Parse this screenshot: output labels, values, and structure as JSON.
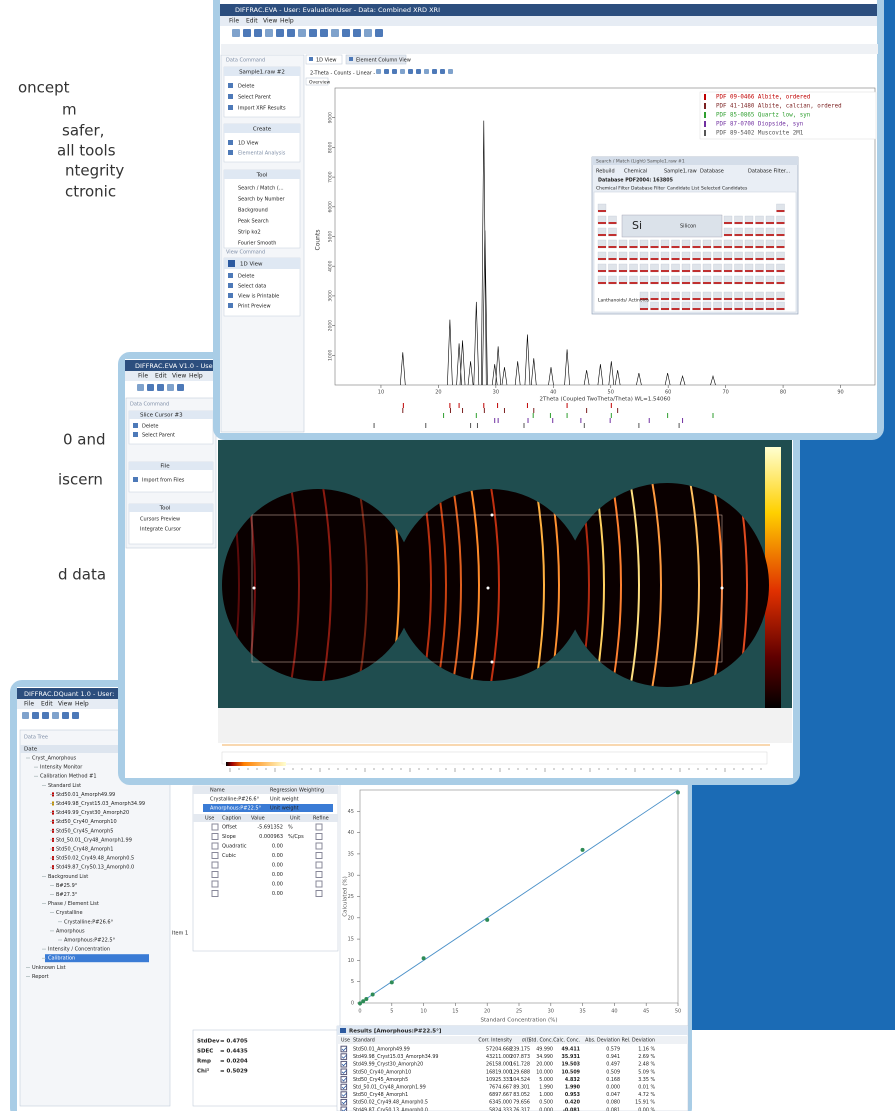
{
  "side_text": [
    "oncept",
    "m",
    "safer,",
    "all tools",
    "ntegrity",
    "ctronic",
    "0 and",
    "iscern",
    "d data"
  ],
  "eva_window": {
    "title": "DIFFRAC.EVA - User: EvaluationUser - Data: Combined XRD XRI",
    "menu": [
      "File",
      "Edit",
      "View",
      "Help"
    ],
    "data_panel": "Data Command",
    "sample": "Sample1.raw #2",
    "sample_actions": [
      "Delete",
      "Select Parent",
      "Import XRF Results"
    ],
    "create_header": "Create",
    "create_actions": [
      "1D View",
      "Elemental Analysis"
    ],
    "tool_header": "Tool",
    "tool_actions": [
      "Search / Match (...",
      "Search by Number",
      "Background",
      "Peak Search",
      "Strip kα2",
      "Fourier Smooth"
    ],
    "view_panel": "View Command",
    "view_name": "1D View",
    "view_actions": [
      "Delete",
      "Select data",
      "View is Printable",
      "Print Preview"
    ],
    "tabs": [
      "1D View",
      "Element Column View"
    ],
    "chart_toolbar": "2-Theta - Counts - Linear -",
    "overview": "Overview",
    "dialog": {
      "title": "Search / Match (Light) Sample1.raw #1",
      "controls": [
        "Rebuild",
        "Chemical",
        "Sample1.raw",
        "Database",
        "Database Filter..."
      ],
      "database": "Database PDF2004: 163805",
      "tabs": [
        "Chemical Filter",
        "Database Filter",
        "Candidate List",
        "Selected Candidates"
      ],
      "symbol": "Si",
      "element": "Silicon",
      "group": "Lanthanoids/ Actinoids"
    }
  },
  "analysis_window": {
    "title": "DIFFRAC.EVA V1.0 - User:",
    "menu": [
      "File",
      "Edit",
      "View",
      "Help"
    ],
    "data_panel": "Data Command",
    "cursor": "Slice Cursor #3",
    "cursor_actions": [
      "Delete",
      "Select Parent"
    ],
    "file_header": "File",
    "file_actions": [
      "Import from Files"
    ],
    "tool_header": "Tool",
    "tool_actions": [
      "Cursors Preview",
      "Integrate Cursor"
    ]
  },
  "dquant_window": {
    "title": "DIFFRAC.DQuant 1.0 - User:",
    "menu": [
      "File",
      "Edit",
      "View",
      "Help"
    ],
    "panel": "Data Tree",
    "column": "Date",
    "tree": [
      "Cryst_Amorphous",
      "Intensity Monitor",
      "Calibration Method #1",
      "Standard List",
      "Std50.01_Amorph49.99",
      "Std49.98_Cryst15.03_Amorph34.99",
      "Std49.99_Cryst30_Amorph20",
      "Std50_Cry40_Amorph10",
      "Std50_Cry45_Amorph5",
      "Std_50.01_Cry48_Amorph1.99",
      "Std50_Cry48_Amorph1",
      "Std50.02_Cry49.48_Amorph0.5",
      "Std49.87_Cry50.13_Amorph0.0",
      "Background List",
      "B#25.9°",
      "B#27.3°",
      "Phase / Element List",
      "Crystalline",
      "Crystalline:P#26.6°",
      "Amorphous",
      "Amorphous:P#22.5°",
      "Intensity / Concentration",
      "Calibration",
      "Unknown List",
      "Report"
    ],
    "regression_header": [
      "Name",
      "Regression Weighting"
    ],
    "phases": [
      [
        "Crystalline:P#26.6°",
        "Unit weight"
      ],
      [
        "Amorphous:P#22.5°",
        "Unit weight"
      ]
    ],
    "coef_header": [
      "Use",
      "Caption",
      "Value",
      "Unit",
      "Refine"
    ],
    "coefs": [
      {
        "caption": "Offset",
        "value": "-5.691352",
        "unit": "%"
      },
      {
        "caption": "Slope",
        "value": "0.000963",
        "unit": "%/Cps"
      },
      {
        "caption": "Quadratic",
        "value": "0.00"
      },
      {
        "caption": "Cubic",
        "value": "0.00"
      },
      {
        "value": "0.00"
      },
      {
        "value": "0.00"
      },
      {
        "value": "0.00"
      },
      {
        "value": "0.00"
      }
    ],
    "item": "Item 1",
    "stats": [
      [
        "StdDev",
        "= 0.4705"
      ],
      [
        "SDEC",
        "= 0.4435"
      ],
      [
        "Rmp",
        "= 0.0204"
      ],
      [
        "Chi²",
        "= 0.5029"
      ]
    ],
    "results_title": "Results [Amorphous:P#22.5°]",
    "results_header": [
      "Use",
      "Standard",
      "Corr. Intensity",
      "σ(I)",
      "Std. Conc.",
      "Calc. Conc.",
      "Abs. Deviation",
      "Rel. Deviation"
    ],
    "results": [
      [
        "Std50.01_Amorph49.99",
        "57204.668",
        "239.175",
        "49.990",
        "49.411",
        "0.579",
        "1.16 %"
      ],
      [
        "Std49.98_Cryst15.03_Amorph34.99",
        "43211.000",
        "207.873",
        "34.990",
        "35.931",
        "0.941",
        "2.69 %"
      ],
      [
        "Std49.99_Cryst30_Amorph20",
        "26158.000",
        "161.728",
        "20.000",
        "19.503",
        "0.497",
        "2.48 %"
      ],
      [
        "Std50_Cry40_Amorph10",
        "16819.000",
        "129.688",
        "10.000",
        "10.509",
        "0.509",
        "5.09 %"
      ],
      [
        "Std50_Cry45_Amorph5",
        "10925.333",
        "104.524",
        "5.000",
        "4.832",
        "0.168",
        "3.35 %"
      ],
      [
        "Std_50.01_Cry48_Amorph1.99",
        "7674.667",
        "89.301",
        "1.990",
        "1.990",
        "0.000",
        "0.01 %"
      ],
      [
        "Std50_Cry48_Amorph1",
        "6897.667",
        "83.052",
        "1.000",
        "0.953",
        "0.047",
        "4.72 %"
      ],
      [
        "Std50.02_Cry49.48_Amorph0.5",
        "6345.000",
        "79.656",
        "0.500",
        "0.420",
        "0.080",
        "15.91 %"
      ],
      [
        "Std49.87_Cry50.13_Amorph0.0",
        "5824.333",
        "76.317",
        "0.000",
        "-0.081",
        "0.081",
        "0.00 %"
      ]
    ]
  },
  "chart_data": [
    {
      "type": "stick",
      "x_label": "2Theta (Coupled TwoTheta/Theta) WL=1.54060",
      "y_label": "Counts",
      "color": "#000000",
      "xlim": [
        2,
        96
      ],
      "xticks": [
        10,
        20,
        30,
        40,
        50,
        60,
        70,
        80,
        90
      ],
      "ylim": [
        0,
        10000
      ],
      "yticks": [
        1000,
        2000,
        3000,
        4000,
        5000,
        6000,
        7000,
        8000,
        9000
      ],
      "x": [
        13.8,
        22.0,
        23.6,
        24.2,
        25.6,
        26.6,
        27.9,
        28.1,
        29.8,
        30.4,
        31.5,
        33.8,
        35.5,
        36.6,
        39.6,
        42.4,
        45.8,
        48.2,
        50.1,
        51.2,
        54.9,
        59.9,
        62.5,
        67.8
      ],
      "values": [
        1100,
        2200,
        1400,
        1500,
        800,
        2800,
        8900,
        5200,
        700,
        1300,
        600,
        800,
        1700,
        900,
        600,
        1200,
        500,
        700,
        800,
        500,
        400,
        400,
        300,
        300
      ],
      "series": [
        {
          "name": "PDF 09-0466 Albite, ordered",
          "color": "#c00000",
          "x": [
            13.9,
            22.0,
            23.6,
            27.9,
            30.3,
            35.5,
            42.4,
            50.1
          ]
        },
        {
          "name": "PDF 41-1480 Albite, calcian, ordered",
          "color": "#7a1f1f",
          "x": [
            13.8,
            22.1,
            24.2,
            28.0,
            31.5,
            36.6,
            45.8,
            51.2
          ]
        },
        {
          "name": "PDF 85-0865 Quartz low, syn",
          "color": "#2e9e2e",
          "x": [
            20.9,
            26.6,
            36.5,
            39.5,
            42.4,
            50.1,
            59.9,
            67.8
          ]
        },
        {
          "name": "PDF 87-0700 Diopside, syn",
          "color": "#7030a0",
          "x": [
            29.8,
            30.4,
            35.6,
            39.9,
            44.8,
            49.9,
            56.7,
            62.5
          ]
        },
        {
          "name": "PDF 89-5402 Muscovite 2M1",
          "color": "#555555",
          "x": [
            8.8,
            17.8,
            25.6,
            26.8,
            34.9,
            45.4,
            54.9,
            61.9
          ]
        }
      ]
    },
    {
      "type": "scatter",
      "x_label": "Standard Concentration (%)",
      "y_label": "Calculated (%)",
      "color": "#2e8b57",
      "line_color": "#4a90c8",
      "xlim": [
        0,
        50
      ],
      "xticks": [
        0,
        5,
        10,
        15,
        20,
        25,
        30,
        35,
        40,
        45,
        50
      ],
      "ylim": [
        0,
        50
      ],
      "yticks": [
        0,
        5,
        10,
        15,
        20,
        25,
        30,
        35,
        40,
        45
      ],
      "x": [
        49.99,
        34.99,
        20.0,
        10.0,
        5.0,
        1.99,
        1.0,
        0.5,
        0.0
      ],
      "values": [
        49.411,
        35.931,
        19.503,
        10.509,
        4.832,
        1.99,
        0.953,
        0.42,
        -0.081
      ]
    }
  ]
}
